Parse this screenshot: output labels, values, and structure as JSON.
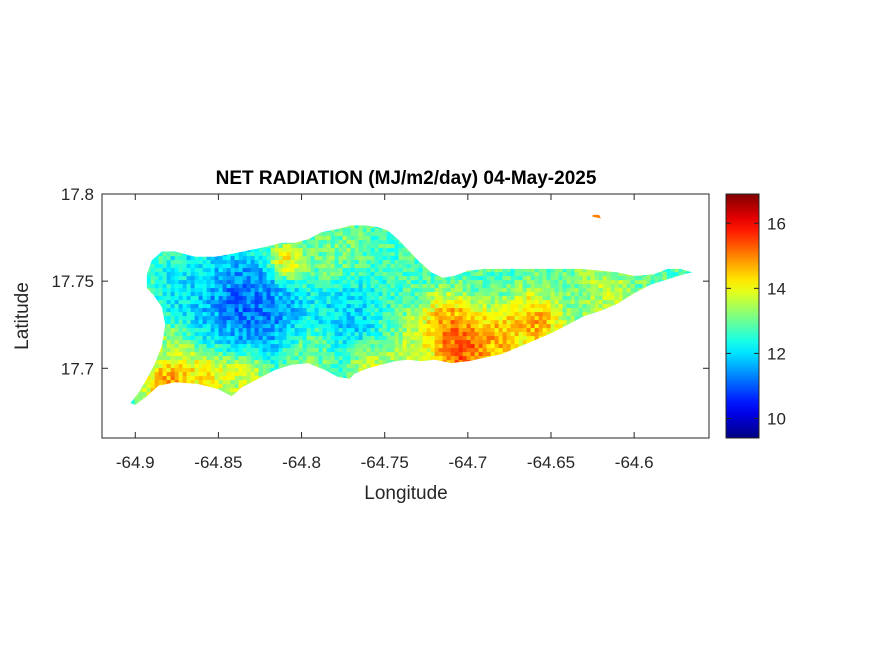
{
  "chart_data": {
    "type": "heatmap",
    "title": "NET RADIATION (MJ/m2/day) 04-May-2025",
    "xlabel": "Longitude",
    "ylabel": "Latitude",
    "xlim": [
      -64.92,
      -64.555
    ],
    "ylim": [
      17.66,
      17.8
    ],
    "xticks": [
      -64.9,
      -64.85,
      -64.8,
      -64.75,
      -64.7,
      -64.65,
      -64.6
    ],
    "xtick_labels": [
      "-64.9",
      "-64.85",
      "-64.8",
      "-64.75",
      "-64.7",
      "-64.65",
      "-64.6"
    ],
    "yticks": [
      17.7,
      17.75,
      17.8
    ],
    "ytick_labels": [
      "17.7",
      "17.75",
      "17.8"
    ],
    "grid": false,
    "colormap": "jet",
    "clim": [
      9.4,
      16.9
    ],
    "colorbar": {
      "position": "right",
      "ticks": [
        10,
        12,
        14,
        16
      ],
      "tick_labels": [
        "10",
        "12",
        "14",
        "16"
      ]
    },
    "island_outline": [
      [
        -64.9,
        17.679
      ],
      [
        -64.893,
        17.684
      ],
      [
        -64.886,
        17.69
      ],
      [
        -64.876,
        17.692
      ],
      [
        -64.862,
        17.691
      ],
      [
        -64.85,
        17.688
      ],
      [
        -64.842,
        17.684
      ],
      [
        -64.836,
        17.689
      ],
      [
        -64.826,
        17.694
      ],
      [
        -64.816,
        17.699
      ],
      [
        -64.806,
        17.702
      ],
      [
        -64.796,
        17.703
      ],
      [
        -64.786,
        17.699
      ],
      [
        -64.778,
        17.695
      ],
      [
        -64.771,
        17.694
      ],
      [
        -64.768,
        17.697
      ],
      [
        -64.76,
        17.7
      ],
      [
        -64.752,
        17.702
      ],
      [
        -64.744,
        17.704
      ],
      [
        -64.736,
        17.705
      ],
      [
        -64.728,
        17.704
      ],
      [
        -64.72,
        17.705
      ],
      [
        -64.71,
        17.703
      ],
      [
        -64.7,
        17.704
      ],
      [
        -64.69,
        17.706
      ],
      [
        -64.68,
        17.708
      ],
      [
        -64.67,
        17.712
      ],
      [
        -64.66,
        17.716
      ],
      [
        -64.65,
        17.72
      ],
      [
        -64.64,
        17.725
      ],
      [
        -64.63,
        17.73
      ],
      [
        -64.62,
        17.733
      ],
      [
        -64.61,
        17.737
      ],
      [
        -64.6,
        17.743
      ],
      [
        -64.59,
        17.748
      ],
      [
        -64.58,
        17.751
      ],
      [
        -64.57,
        17.754
      ],
      [
        -64.565,
        17.755
      ],
      [
        -64.572,
        17.757
      ],
      [
        -64.58,
        17.757
      ],
      [
        -64.588,
        17.754
      ],
      [
        -64.6,
        17.753
      ],
      [
        -64.61,
        17.755
      ],
      [
        -64.62,
        17.756
      ],
      [
        -64.632,
        17.757
      ],
      [
        -64.645,
        17.757
      ],
      [
        -64.66,
        17.757
      ],
      [
        -64.675,
        17.757
      ],
      [
        -64.69,
        17.757
      ],
      [
        -64.7,
        17.756
      ],
      [
        -64.708,
        17.753
      ],
      [
        -64.715,
        17.752
      ],
      [
        -64.722,
        17.755
      ],
      [
        -64.73,
        17.762
      ],
      [
        -64.736,
        17.768
      ],
      [
        -64.742,
        17.774
      ],
      [
        -64.748,
        17.779
      ],
      [
        -64.754,
        17.781
      ],
      [
        -64.762,
        17.782
      ],
      [
        -64.77,
        17.782
      ],
      [
        -64.778,
        17.78
      ],
      [
        -64.788,
        17.778
      ],
      [
        -64.796,
        17.774
      ],
      [
        -64.804,
        17.772
      ],
      [
        -64.812,
        17.772
      ],
      [
        -64.82,
        17.77
      ],
      [
        -64.83,
        17.768
      ],
      [
        -64.84,
        17.766
      ],
      [
        -64.852,
        17.764
      ],
      [
        -64.864,
        17.764
      ],
      [
        -64.876,
        17.767
      ],
      [
        -64.884,
        17.767
      ],
      [
        -64.89,
        17.762
      ],
      [
        -64.893,
        17.754
      ],
      [
        -64.893,
        17.746
      ],
      [
        -64.889,
        17.742
      ],
      [
        -64.884,
        17.735
      ],
      [
        -64.882,
        17.725
      ],
      [
        -64.884,
        17.713
      ],
      [
        -64.888,
        17.703
      ],
      [
        -64.893,
        17.694
      ],
      [
        -64.898,
        17.686
      ],
      [
        -64.903,
        17.68
      ]
    ],
    "islet_outline": [
      [
        -64.625,
        17.787
      ],
      [
        -64.62,
        17.786
      ],
      [
        -64.621,
        17.788
      ],
      [
        -64.625,
        17.788
      ]
    ],
    "value_field": [
      {
        "lon": -64.84,
        "lat": 17.738,
        "value": 10.6,
        "radius": 0.022
      },
      {
        "lon": -64.82,
        "lat": 17.726,
        "value": 11.0,
        "radius": 0.018
      },
      {
        "lon": -64.86,
        "lat": 17.725,
        "value": 12.0,
        "radius": 0.016
      },
      {
        "lon": -64.87,
        "lat": 17.75,
        "value": 12.0,
        "radius": 0.015
      },
      {
        "lon": -64.77,
        "lat": 17.73,
        "value": 11.6,
        "radius": 0.02
      },
      {
        "lon": -64.745,
        "lat": 17.745,
        "value": 12.6,
        "radius": 0.018
      },
      {
        "lon": -64.78,
        "lat": 17.765,
        "value": 13.2,
        "radius": 0.014
      },
      {
        "lon": -64.81,
        "lat": 17.762,
        "value": 14.6,
        "radius": 0.008
      },
      {
        "lon": -64.735,
        "lat": 17.72,
        "value": 13.8,
        "radius": 0.016
      },
      {
        "lon": -64.715,
        "lat": 17.725,
        "value": 15.6,
        "radius": 0.014
      },
      {
        "lon": -64.705,
        "lat": 17.712,
        "value": 16.2,
        "radius": 0.012
      },
      {
        "lon": -64.685,
        "lat": 17.718,
        "value": 15.2,
        "radius": 0.013
      },
      {
        "lon": -64.66,
        "lat": 17.73,
        "value": 15.4,
        "radius": 0.013
      },
      {
        "lon": -64.65,
        "lat": 17.748,
        "value": 13.0,
        "radius": 0.014
      },
      {
        "lon": -64.62,
        "lat": 17.745,
        "value": 13.8,
        "radius": 0.014
      },
      {
        "lon": -64.59,
        "lat": 17.752,
        "value": 13.0,
        "radius": 0.01
      },
      {
        "lon": -64.88,
        "lat": 17.692,
        "value": 15.4,
        "radius": 0.012
      },
      {
        "lon": -64.86,
        "lat": 17.7,
        "value": 14.8,
        "radius": 0.012
      },
      {
        "lon": -64.835,
        "lat": 17.7,
        "value": 14.2,
        "radius": 0.012
      },
      {
        "lon": -64.8,
        "lat": 17.71,
        "value": 13.4,
        "radius": 0.014
      },
      {
        "lon": -64.76,
        "lat": 17.705,
        "value": 14.2,
        "radius": 0.01
      },
      {
        "lon": -64.875,
        "lat": 17.715,
        "value": 13.8,
        "radius": 0.01
      }
    ],
    "base_value": 12.8
  }
}
